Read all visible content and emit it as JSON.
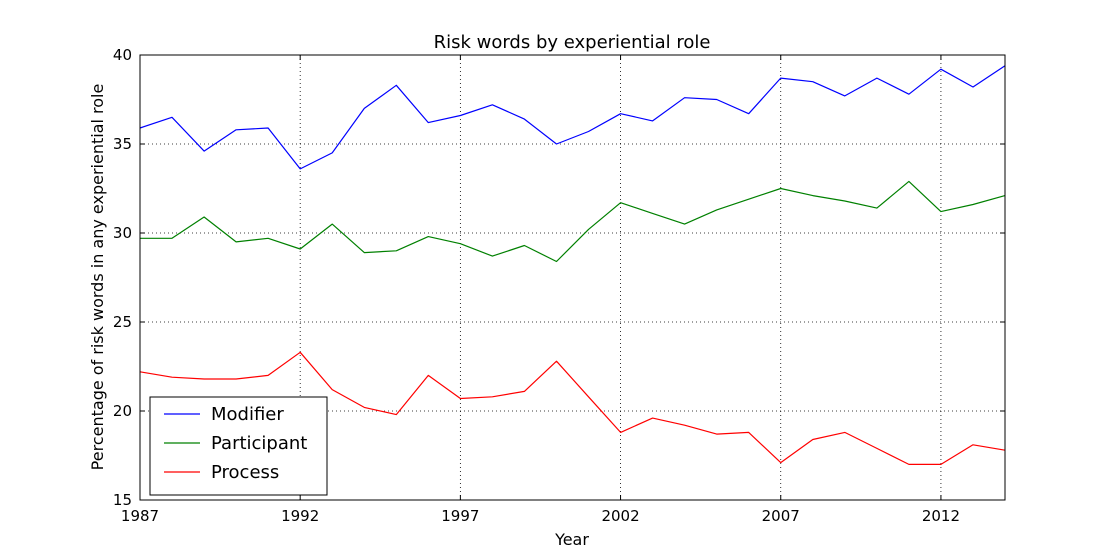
{
  "chart_data": {
    "type": "line",
    "title": "Risk words by experiential role",
    "xlabel": "Year",
    "ylabel": "Percentage of risk words in any experiential role",
    "xlim": [
      1987,
      2014
    ],
    "ylim": [
      15,
      40
    ],
    "x_ticks": [
      1987,
      1992,
      1997,
      2002,
      2007,
      2012
    ],
    "y_ticks": [
      15,
      20,
      25,
      30,
      35,
      40
    ],
    "grid": true,
    "legend_position": "lower-left",
    "x": [
      1987,
      1988,
      1989,
      1990,
      1991,
      1992,
      1993,
      1994,
      1995,
      1996,
      1997,
      1998,
      1999,
      2000,
      2001,
      2002,
      2003,
      2004,
      2005,
      2006,
      2007,
      2008,
      2009,
      2010,
      2011,
      2012,
      2013,
      2014
    ],
    "series": [
      {
        "name": "Modifier",
        "color": "#0000ff",
        "values": [
          35.9,
          36.5,
          34.6,
          35.8,
          35.9,
          33.6,
          34.5,
          37.0,
          38.3,
          36.2,
          36.6,
          37.2,
          36.4,
          35.0,
          35.7,
          36.7,
          36.3,
          37.6,
          37.5,
          36.7,
          38.7,
          38.5,
          37.7,
          38.7,
          37.8,
          39.2,
          38.2,
          39.4
        ]
      },
      {
        "name": "Participant",
        "color": "#008000",
        "values": [
          29.7,
          29.7,
          30.9,
          29.5,
          29.7,
          29.1,
          30.5,
          28.9,
          29.0,
          29.8,
          29.4,
          28.7,
          29.3,
          28.4,
          30.2,
          31.7,
          31.1,
          30.5,
          31.3,
          31.9,
          32.5,
          32.1,
          31.8,
          31.4,
          32.9,
          31.2,
          31.6,
          32.1
        ]
      },
      {
        "name": "Process",
        "color": "#ff0000",
        "values": [
          22.2,
          21.9,
          21.8,
          21.8,
          22.0,
          23.3,
          21.2,
          20.2,
          19.8,
          22.0,
          20.7,
          20.8,
          21.1,
          22.8,
          20.8,
          18.8,
          19.6,
          19.2,
          18.7,
          18.8,
          17.1,
          18.4,
          18.8,
          17.9,
          17.0,
          17.0,
          18.1,
          17.8
        ]
      }
    ]
  }
}
